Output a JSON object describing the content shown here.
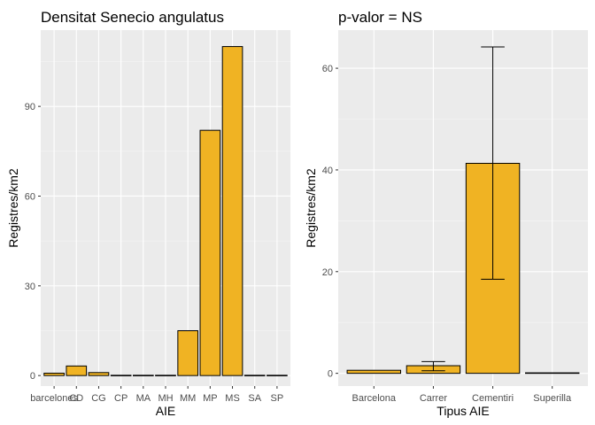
{
  "chart_data": [
    {
      "type": "bar",
      "title": "Densitat Senecio angulatus",
      "xlabel": "AIE",
      "ylabel": "Registres/km2",
      "categories": [
        "barcelones",
        "CD",
        "CG",
        "CP",
        "MA",
        "MH",
        "MM",
        "MP",
        "MS",
        "SA",
        "SP"
      ],
      "values": [
        0.8,
        3.2,
        1.0,
        0.1,
        0.1,
        0.1,
        15.0,
        82.0,
        110.0,
        0.1,
        0.1
      ],
      "ylim": [
        -3.5,
        115.5
      ],
      "yticks": [
        0,
        30,
        60,
        90
      ],
      "bar_color": "#F0B323",
      "panel_background": "#EBEBEB",
      "grid": true
    },
    {
      "type": "bar",
      "title": "p-valor = NS",
      "xlabel": "Tipus AIE",
      "ylabel": "Registres/km2",
      "categories": [
        "Barcelona",
        "Carrer",
        "Cementiri",
        "Superilla"
      ],
      "values": [
        0.6,
        1.5,
        41.3,
        0.1
      ],
      "error_low": [
        null,
        0.5,
        18.5,
        null
      ],
      "error_high": [
        null,
        2.3,
        64.2,
        null
      ],
      "ylim": [
        -2.5,
        67.5
      ],
      "yticks": [
        0,
        20,
        40,
        60
      ],
      "bar_color": "#F0B323",
      "panel_background": "#EBEBEB",
      "grid": true
    }
  ]
}
